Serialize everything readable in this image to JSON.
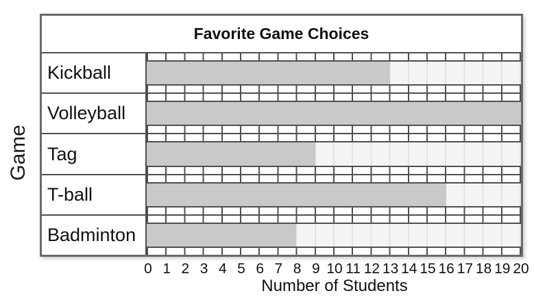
{
  "chart_data": {
    "type": "bar",
    "orientation": "horizontal",
    "title": "Favorite Game Choices",
    "xlabel": "Number of Students",
    "ylabel": "Game",
    "categories": [
      "Kickball",
      "Volleyball",
      "Tag",
      "T-ball",
      "Badminton"
    ],
    "values": [
      13,
      20,
      9,
      16,
      8
    ],
    "xlim": [
      0,
      20
    ],
    "x_tick_step": 1,
    "x_ticks": [
      "0",
      "1",
      "2",
      "3",
      "4",
      "5",
      "6",
      "7",
      "8",
      "9",
      "10",
      "11",
      "12",
      "13",
      "14",
      "15",
      "16",
      "17",
      "18",
      "19",
      "20"
    ],
    "grid": true,
    "legend": "none",
    "colors": {
      "bar_fill": "#c9c9c9",
      "track": "#f4f4f4",
      "grid_line": "#4f4f4f",
      "track_line": "#e3e3e3",
      "frame_border": "#6a6a6a",
      "text": "#111111"
    }
  }
}
